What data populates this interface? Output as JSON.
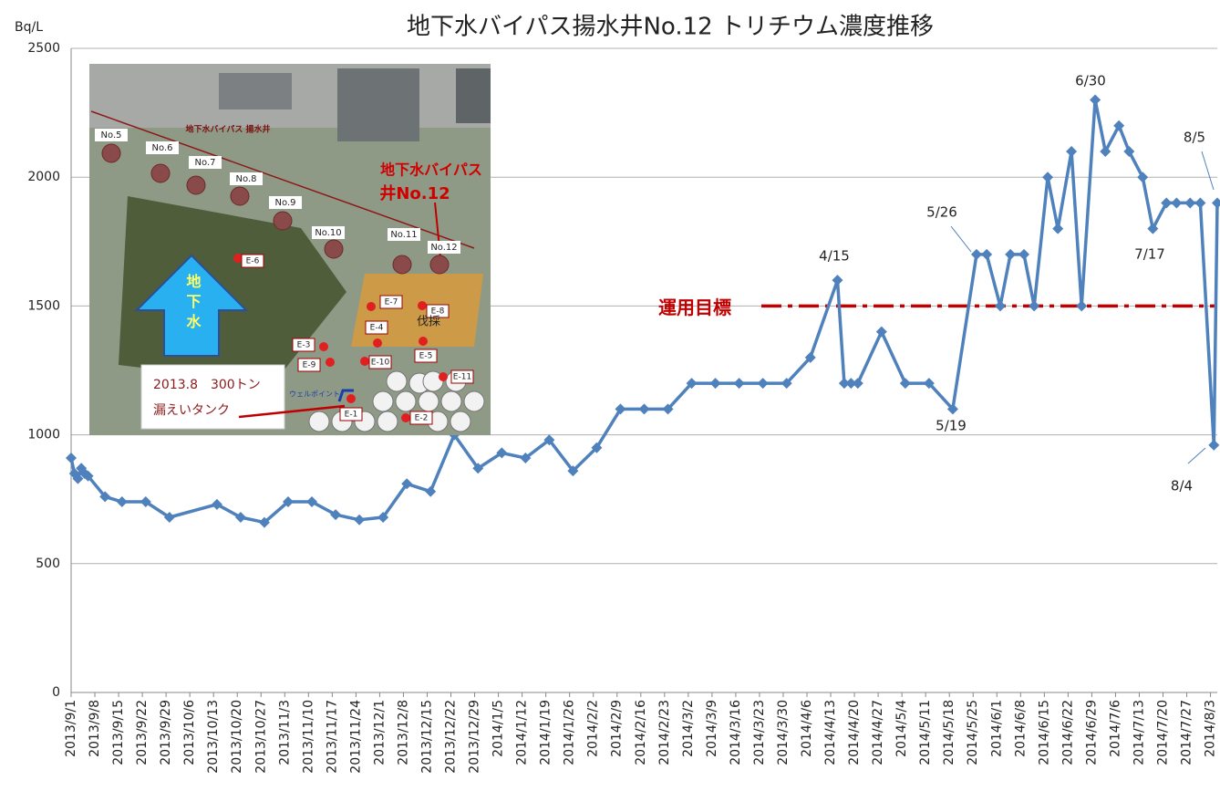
{
  "chart_data": {
    "type": "line",
    "title": "地下水バイパス揚水井No.12 トリチウム濃度推移",
    "y_label": "Bq/L",
    "x": [
      "2013/9/1",
      "2013/9/2",
      "2013/9/3",
      "2013/9/4",
      "2013/9/5",
      "2013/9/6",
      "2013/9/11",
      "2013/9/16",
      "2013/9/23",
      "2013/9/30",
      "2013/10/14",
      "2013/10/21",
      "2013/10/28",
      "2013/11/4",
      "2013/11/11",
      "2013/11/18",
      "2013/11/25",
      "2013/12/2",
      "2013/12/9",
      "2013/12/16",
      "2013/12/23",
      "2013/12/30",
      "2014/1/6",
      "2014/1/13",
      "2014/1/20",
      "2014/1/27",
      "2014/2/3",
      "2014/2/10",
      "2014/2/17",
      "2014/2/24",
      "2014/3/3",
      "2014/3/10",
      "2014/3/17",
      "2014/3/24",
      "2014/3/31",
      "2014/4/7",
      "2014/4/15",
      "2014/4/17",
      "2014/4/19",
      "2014/4/21",
      "2014/4/28",
      "2014/5/5",
      "2014/5/12",
      "2014/5/19",
      "2014/5/26",
      "2014/5/29",
      "2014/6/2",
      "2014/6/5",
      "2014/6/9",
      "2014/6/12",
      "2014/6/16",
      "2014/6/19",
      "2014/6/23",
      "2014/6/26",
      "2014/6/30",
      "2014/7/3",
      "2014/7/7",
      "2014/7/10",
      "2014/7/14",
      "2014/7/17",
      "2014/7/21",
      "2014/7/24",
      "2014/7/28",
      "2014/7/31",
      "2014/8/4",
      "2014/8/5"
    ],
    "values": [
      910,
      850,
      830,
      870,
      850,
      840,
      760,
      740,
      740,
      680,
      730,
      680,
      660,
      740,
      740,
      690,
      670,
      680,
      810,
      780,
      1000,
      870,
      930,
      910,
      980,
      860,
      950,
      1100,
      1100,
      1100,
      1200,
      1200,
      1200,
      1200,
      1200,
      1300,
      1600,
      1200,
      1200,
      1200,
      1400,
      1200,
      1200,
      1100,
      1700,
      1700,
      1500,
      1700,
      1700,
      1500,
      2000,
      1800,
      2100,
      1500,
      2300,
      2100,
      2200,
      2100,
      2000,
      1800,
      1900,
      1900,
      1900,
      1900,
      960,
      1900
    ],
    "color": "#4f81bd",
    "xlim": [
      "2013/9/1",
      "2014/8/5"
    ],
    "xticks": [
      "2013/9/1",
      "2013/9/8",
      "2013/9/15",
      "2013/9/22",
      "2013/9/29",
      "2013/10/6",
      "2013/10/13",
      "2013/10/20",
      "2013/10/27",
      "2013/11/3",
      "2013/11/10",
      "2013/11/17",
      "2013/11/24",
      "2013/12/1",
      "2013/12/8",
      "2013/12/15",
      "2013/12/22",
      "2013/12/29",
      "2014/1/5",
      "2014/1/12",
      "2014/1/19",
      "2014/1/26",
      "2014/2/2",
      "2014/2/9",
      "2014/2/16",
      "2014/2/23",
      "2014/3/2",
      "2014/3/9",
      "2014/3/16",
      "2014/3/23",
      "2014/3/30",
      "2014/4/6",
      "2014/4/13",
      "2014/4/20",
      "2014/4/27",
      "2014/5/4",
      "2014/5/11",
      "2014/5/18",
      "2014/5/25",
      "2014/6/1",
      "2014/6/8",
      "2014/6/15",
      "2014/6/22",
      "2014/6/29",
      "2014/7/6",
      "2014/7/13",
      "2014/7/20",
      "2014/7/27",
      "2014/8/3"
    ],
    "ylim": [
      0,
      2500
    ],
    "yticks": [
      0,
      500,
      1000,
      1500,
      2000,
      2500
    ],
    "grid": true,
    "target": {
      "label": "運用目標",
      "value": 1500,
      "color": "#c00000"
    },
    "annotations": [
      "4/15",
      "5/19",
      "5/26",
      "6/30",
      "7/17",
      "8/5",
      "8/4"
    ]
  },
  "inset": {
    "header": "地下水バイパス 揚水井",
    "wells": [
      "No.5",
      "No.6",
      "No.7",
      "No.8",
      "No.9",
      "No.10",
      "No.11",
      "No.12"
    ],
    "callout": [
      "地下水バイパス",
      "井No.12"
    ],
    "points": [
      "E-1",
      "E-2",
      "E-3",
      "E-4",
      "E-5",
      "E-6",
      "E-7",
      "E-8",
      "E-9",
      "E-10",
      "E-11"
    ],
    "arrow_label": "地下水",
    "cut_area": "伐採",
    "well_point": "ウェルポイント",
    "leak": [
      "2013.8　300トン",
      "漏えいタンク"
    ]
  }
}
